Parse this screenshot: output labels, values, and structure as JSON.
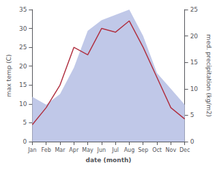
{
  "chart_data": {
    "type": "line",
    "xlabel": "date (month)",
    "ylabel": "max temp (C)",
    "y2label": "med. precipitation (kg/m2)",
    "categories": [
      "Jan",
      "Feb",
      "Mar",
      "Apr",
      "May",
      "Jun",
      "Jul",
      "Aug",
      "Sep",
      "Oct",
      "Nov",
      "Dec"
    ],
    "series": [
      {
        "type": "area",
        "axis": "y2",
        "color": "#c0c8e8",
        "values": [
          8.5,
          7.0,
          9.0,
          14.0,
          21.0,
          23.0,
          24.0,
          25.0,
          20.0,
          13.0,
          10.0,
          7.0
        ]
      },
      {
        "type": "line",
        "color": "#b03040",
        "values": [
          4.5,
          9.0,
          15.0,
          25.0,
          23.0,
          30.0,
          29.0,
          32.0,
          25.0,
          17.0,
          9.0,
          6.0
        ]
      }
    ],
    "ylim": [
      0,
      35
    ],
    "yticks": [
      0,
      5,
      10,
      15,
      20,
      25,
      30,
      35
    ],
    "y2lim": [
      0,
      25
    ],
    "y2ticks": [
      0,
      5,
      10,
      15,
      20,
      25
    ],
    "grid": false
  }
}
